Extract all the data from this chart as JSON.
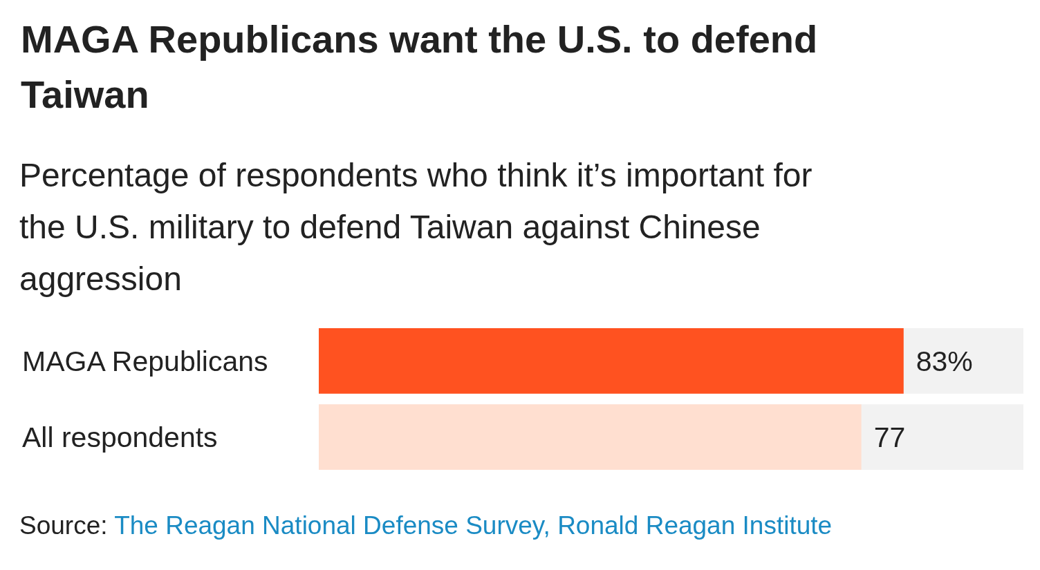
{
  "chart_data": {
    "type": "bar",
    "orientation": "horizontal",
    "title": "MAGA Republicans want the U.S. to defend Taiwan",
    "subtitle": "Percentage of respondents who think it’s important for the U.S. military to defend Taiwan against Chinese aggression",
    "categories": [
      "MAGA Republicans",
      "All respondents"
    ],
    "values": [
      83,
      77
    ],
    "colors": [
      "#ff5220",
      "#ffdfd0"
    ],
    "value_labels": [
      "83%",
      "77"
    ],
    "xlim": [
      0,
      100
    ],
    "annotations": [
      "Source: The Reagan National Defense Survey, Ronald Reagan Institute"
    ]
  }
}
